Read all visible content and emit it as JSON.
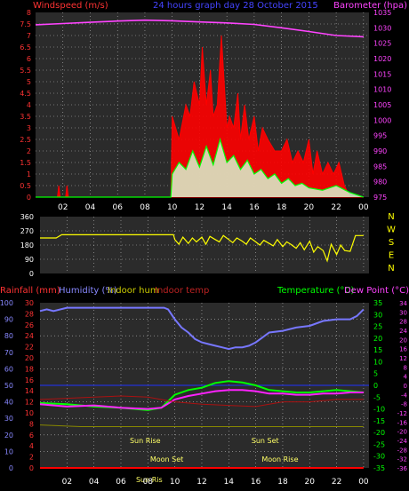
{
  "chart_data": [
    {
      "type": "area",
      "title": "24 hours graph day  28 October 2015",
      "left_axis_title": "Windspeed (m/s)",
      "right_axis_title": "Barometer (hpa)",
      "left_ticks": [
        "0",
        "0.5",
        "1",
        "1.5",
        "2",
        "2.5",
        "3",
        "3.5",
        "4",
        "4.5",
        "5",
        "5.5",
        "6",
        "6.5",
        "7",
        "7.5",
        "8"
      ],
      "left_ylim": [
        0,
        8
      ],
      "right_ticks": [
        "975",
        "980",
        "985",
        "990",
        "995",
        "1000",
        "1005",
        "1010",
        "1015",
        "1020",
        "1025",
        "1030",
        "1035"
      ],
      "right_ylim": [
        975,
        1035
      ],
      "x_ticks": [
        "02",
        "04",
        "06",
        "08",
        "10",
        "12",
        "14",
        "16",
        "18",
        "20",
        "22",
        "00"
      ],
      "x_hours": [
        2,
        4,
        6,
        8,
        10,
        12,
        14,
        16,
        18,
        20,
        22,
        24
      ],
      "x_range_hours": [
        0,
        24.4
      ],
      "series": [
        {
          "key": "barometer",
          "color": "#ff44ff",
          "axis": "right",
          "x": [
            0,
            2,
            4,
            6,
            8,
            10,
            12,
            14,
            16,
            18,
            20,
            22,
            24
          ],
          "y": [
            1031,
            1031.4,
            1031.8,
            1032.2,
            1032.5,
            1032.3,
            1031.9,
            1031.6,
            1031.1,
            1030,
            1028.8,
            1027.5,
            1027.1
          ]
        },
        {
          "key": "gust",
          "color": "#ff0000",
          "axis": "left",
          "x": [
            0,
            1.6,
            1.7,
            1.8,
            2.2,
            2.3,
            2.4,
            9.9,
            10,
            10.5,
            11,
            11.3,
            11.6,
            12,
            12.2,
            12.5,
            12.8,
            13,
            13.3,
            13.6,
            14,
            14.2,
            14.5,
            14.8,
            15,
            15.3,
            15.6,
            16,
            16.3,
            16.6,
            17,
            17.5,
            18,
            18.4,
            18.8,
            19.2,
            19.6,
            20,
            20.3,
            20.6,
            21,
            21.4,
            21.8,
            22.2,
            22.6,
            23,
            24
          ],
          "y": [
            0,
            0,
            0.5,
            0,
            0,
            0.5,
            0,
            0,
            3.5,
            2.5,
            4,
            3.5,
            5,
            4,
            6.5,
            4,
            5.5,
            3.5,
            4,
            7,
            3,
            3.5,
            3,
            4.5,
            2.5,
            4,
            2.5,
            3.5,
            2,
            3,
            2.5,
            2,
            2,
            2.5,
            1.5,
            2,
            1.5,
            2.5,
            1,
            2,
            1,
            1.5,
            1,
            1.5,
            0.5,
            0,
            0
          ]
        },
        {
          "key": "average",
          "color": "#00ff00",
          "axis": "left",
          "x": [
            0,
            9.9,
            10,
            10.5,
            11,
            11.5,
            12,
            12.5,
            13,
            13.5,
            14,
            14.5,
            15,
            15.5,
            16,
            16.5,
            17,
            17.5,
            18,
            18.5,
            19,
            19.5,
            20,
            21,
            22,
            23,
            24
          ],
          "y": [
            0,
            0,
            1,
            1.5,
            1.2,
            2,
            1.3,
            2.2,
            1.4,
            2.5,
            1.5,
            1.8,
            1.2,
            1.6,
            1,
            1.2,
            0.8,
            1,
            0.6,
            0.8,
            0.5,
            0.6,
            0.4,
            0.3,
            0.5,
            0.2,
            0
          ]
        }
      ]
    },
    {
      "type": "line",
      "left_ticks": [
        "0",
        "90",
        "180",
        "270",
        "360"
      ],
      "ylim": [
        0,
        360
      ],
      "compass_labels": [
        "N",
        "W",
        "S",
        "E",
        "N"
      ],
      "series": [
        {
          "key": "wind_direction",
          "color": "#ffff00",
          "x": [
            0,
            1.2,
            1.6,
            2,
            4,
            6,
            8,
            9.9,
            10,
            10.3,
            10.6,
            11,
            11.3,
            11.6,
            12,
            12.3,
            12.6,
            13,
            13.3,
            13.6,
            14,
            14.3,
            14.6,
            15,
            15.3,
            15.6,
            16,
            16.3,
            16.6,
            17,
            17.3,
            17.6,
            18,
            18.3,
            18.6,
            19,
            19.3,
            19.6,
            20,
            20.3,
            20.6,
            21,
            21.3,
            21.6,
            22,
            22.3,
            22.6,
            23,
            23.4,
            24
          ],
          "y": [
            225,
            225,
            245,
            245,
            245,
            245,
            245,
            245,
            215,
            185,
            230,
            190,
            225,
            200,
            230,
            185,
            235,
            215,
            200,
            240,
            215,
            195,
            225,
            205,
            185,
            225,
            200,
            180,
            210,
            190,
            175,
            215,
            170,
            200,
            185,
            160,
            195,
            150,
            205,
            135,
            170,
            145,
            80,
            185,
            120,
            180,
            145,
            140,
            240,
            240
          ]
        }
      ]
    },
    {
      "type": "line",
      "left_title": "Rainfall (mm)",
      "humidity_title": "Humidity (%)",
      "indoor_hum_title": "Indoor hum",
      "indoor_temp_title": "Indoor temp",
      "temperature_title": "Temperature (°C)",
      "dewpoint_title": "Dew Point (°C)",
      "humidity_ticks": [
        "0",
        "10",
        "20",
        "30",
        "40",
        "50",
        "60",
        "70",
        "80",
        "90",
        "100"
      ],
      "humidity_ylim": [
        0,
        100
      ],
      "rain_ticks": [
        "0",
        "2",
        "4",
        "6",
        "8",
        "10",
        "12",
        "14",
        "16",
        "18",
        "20",
        "22",
        "24",
        "26",
        "28",
        "30"
      ],
      "rain_ylim": [
        0,
        30
      ],
      "temp_ticks": [
        "-35",
        "-30",
        "-25",
        "-20",
        "-15",
        "-10",
        "-5",
        "0",
        "5",
        "10",
        "15",
        "20",
        "25",
        "30",
        "35"
      ],
      "temp_ylim": [
        -35,
        35
      ],
      "dew_ticks": [
        "-36",
        "-32",
        "-28",
        "-24",
        "-20",
        "-16",
        "-12",
        "-8",
        "-4",
        "0",
        "4",
        "8",
        "12",
        "16",
        "20",
        "24",
        "28",
        "30",
        "34"
      ],
      "annotations": [
        {
          "text": "Sun Rise",
          "hour": 7.8
        },
        {
          "text": "Sun Set",
          "hour": 16.7
        },
        {
          "text": "Moon Set",
          "hour": 9.4
        },
        {
          "text": "Moon Rise",
          "hour": 17.8
        },
        {
          "text": "Sun Ris",
          "hour": 8.1
        }
      ],
      "series": [
        {
          "key": "humidity",
          "color": "#7777ff",
          "axis": "humidity",
          "x": [
            0,
            0.5,
            1,
            2,
            4,
            6,
            8,
            9.2,
            9.5,
            10,
            10.5,
            11,
            11.5,
            12,
            12.5,
            13,
            13.5,
            14,
            14.5,
            15,
            15.5,
            16,
            16.5,
            17,
            18,
            19,
            20,
            21,
            22,
            23,
            23.5,
            24
          ],
          "y": [
            95,
            96,
            95,
            97,
            97,
            97,
            97,
            97,
            96,
            90,
            85,
            82,
            78,
            76,
            75,
            74,
            73,
            72,
            73,
            73,
            74,
            76,
            79,
            82,
            83,
            85,
            86,
            89,
            90,
            90,
            92,
            96
          ]
        },
        {
          "key": "temperature",
          "color": "#00ff00",
          "axis": "temp",
          "x": [
            0,
            2,
            4,
            6,
            8,
            9,
            10,
            11,
            12,
            13,
            14,
            15,
            16,
            17,
            18,
            19,
            20,
            21,
            22,
            23,
            24
          ],
          "y": [
            -7.5,
            -8,
            -9,
            -9.5,
            -10.5,
            -9.5,
            -4,
            -2,
            -1,
            1,
            1.8,
            1.2,
            0,
            -2,
            -2.5,
            -3,
            -3,
            -2.5,
            -2,
            -2.5,
            -3
          ]
        },
        {
          "key": "dewpoint",
          "color": "#ff22ff",
          "axis": "temp",
          "x": [
            0,
            2,
            4,
            6,
            8,
            9,
            10,
            11,
            12,
            13,
            14,
            15,
            16,
            17,
            18,
            19,
            20,
            21,
            22,
            23,
            24
          ],
          "y": [
            -8,
            -9,
            -8.5,
            -9.5,
            -10,
            -9.5,
            -6,
            -4.5,
            -3.5,
            -2.5,
            -2,
            -2,
            -2.5,
            -3.5,
            -3.5,
            -4,
            -4,
            -3.5,
            -3.5,
            -3,
            -3
          ]
        },
        {
          "key": "indoor_temp",
          "color": "#aa1111",
          "axis": "temp",
          "x": [
            0,
            2,
            4,
            6,
            8,
            10,
            12,
            14,
            16,
            18,
            20,
            22,
            24
          ],
          "y": [
            -6,
            -5.5,
            -5,
            -4.5,
            -5,
            -7,
            -8,
            -8.5,
            -9,
            -7,
            -7,
            -6,
            -6
          ]
        },
        {
          "key": "indoor_hum",
          "color": "#888800",
          "axis": "humidity",
          "x": [
            0,
            3,
            6,
            9,
            12,
            15,
            18,
            21,
            24
          ],
          "y": [
            26,
            25,
            25,
            25,
            25,
            25,
            25,
            25,
            25
          ]
        },
        {
          "key": "rainfall",
          "color": "#ff0000",
          "axis": "rain",
          "x": [
            0,
            24
          ],
          "y": [
            0,
            0
          ]
        }
      ]
    }
  ]
}
